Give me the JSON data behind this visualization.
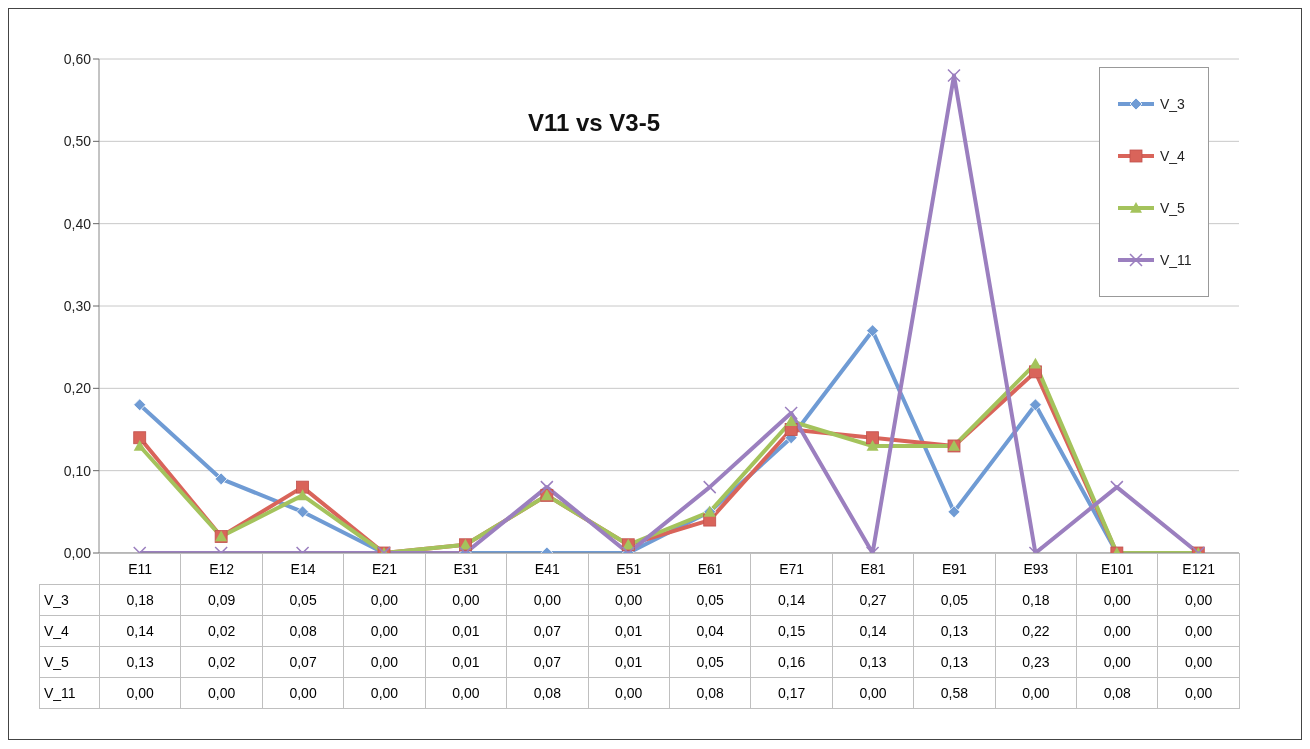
{
  "chart_data": {
    "type": "line",
    "title": "V11 vs V3-5",
    "categories": [
      "E11",
      "E12",
      "E14",
      "E21",
      "E31",
      "E41",
      "E51",
      "E61",
      "E71",
      "E81",
      "E91",
      "E93",
      "E101",
      "E121"
    ],
    "series": [
      {
        "name": "V_3",
        "color": "#6f9bd4",
        "marker": "diamond",
        "values": [
          0.18,
          0.09,
          0.05,
          0,
          0,
          0,
          0,
          0.05,
          0.14,
          0.27,
          0.05,
          0.18,
          0,
          0
        ],
        "value_labels": [
          "0,18",
          "0,09",
          "0,05",
          "0,00",
          "0,00",
          "0,00",
          "0,00",
          "0,05",
          "0,14",
          "0,27",
          "0,05",
          "0,18",
          "0,00",
          "0,00"
        ]
      },
      {
        "name": "V_4",
        "color": "#d9645a",
        "marker": "square",
        "values": [
          0.14,
          0.02,
          0.08,
          0,
          0.01,
          0.07,
          0.01,
          0.04,
          0.15,
          0.14,
          0.13,
          0.22,
          0,
          0
        ],
        "value_labels": [
          "0,14",
          "0,02",
          "0,08",
          "0,00",
          "0,01",
          "0,07",
          "0,01",
          "0,04",
          "0,15",
          "0,14",
          "0,13",
          "0,22",
          "0,00",
          "0,00"
        ]
      },
      {
        "name": "V_5",
        "color": "#a4c35c",
        "marker": "triangle",
        "values": [
          0.13,
          0.02,
          0.07,
          0,
          0.01,
          0.07,
          0.01,
          0.05,
          0.16,
          0.13,
          0.13,
          0.23,
          0,
          0
        ],
        "value_labels": [
          "0,13",
          "0,02",
          "0,07",
          "0,00",
          "0,01",
          "0,07",
          "0,01",
          "0,05",
          "0,16",
          "0,13",
          "0,13",
          "0,23",
          "0,00",
          "0,00"
        ]
      },
      {
        "name": "V_11",
        "color": "#9b7fbf",
        "marker": "cross",
        "values": [
          0,
          0,
          0,
          0,
          0,
          0.08,
          0,
          0.08,
          0.17,
          0,
          0.58,
          0,
          0.08,
          0
        ],
        "value_labels": [
          "0,00",
          "0,00",
          "0,00",
          "0,00",
          "0,00",
          "0,08",
          "0,00",
          "0,08",
          "0,17",
          "0,00",
          "0,58",
          "0,00",
          "0,08",
          "0,00"
        ]
      }
    ],
    "ylim": [
      0,
      0.6
    ],
    "yticks": [
      {
        "value": 0,
        "label": "0,00"
      },
      {
        "value": 0.1,
        "label": "0,10"
      },
      {
        "value": 0.2,
        "label": "0,20"
      },
      {
        "value": 0.3,
        "label": "0,30"
      },
      {
        "value": 0.4,
        "label": "0,40"
      },
      {
        "value": 0.5,
        "label": "0,50"
      },
      {
        "value": 0.6,
        "label": "0,60"
      }
    ],
    "grid": "y",
    "legend": "top right",
    "line_style": "solid"
  }
}
